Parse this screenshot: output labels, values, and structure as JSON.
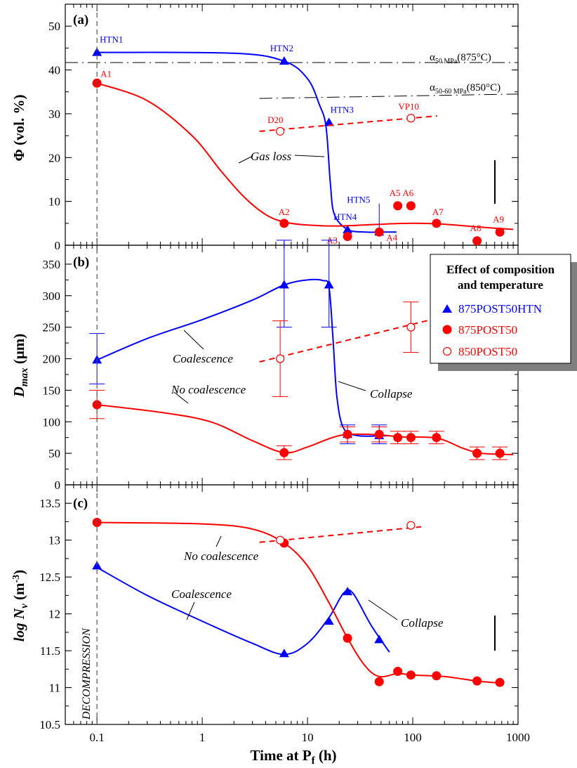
{
  "chart_data": {
    "type": "line",
    "x_axis": {
      "label": "Time at P",
      "label_sub": "f",
      "label_unit": " (h)",
      "scale": "log",
      "range": [
        0.05,
        1000
      ],
      "ticks": [
        0.1,
        1,
        10,
        100,
        1000
      ],
      "tick_labels": [
        "0.1",
        "1",
        "10",
        "100",
        "1000"
      ]
    },
    "decompression_line": {
      "x": 0.1,
      "label": "DECOMPRESSION"
    },
    "legend": {
      "title_line1": "Effect of composition",
      "title_line2": "and temperature",
      "items": [
        {
          "label": "875POST50HTN",
          "marker": "triangle",
          "color": "#0000ff"
        },
        {
          "label": "875POST50",
          "marker": "filled-circle",
          "color": "#ff0000"
        },
        {
          "label": "850POST50",
          "marker": "open-circle",
          "color": "#ff0000"
        }
      ]
    },
    "panels": [
      {
        "tag": "(a)",
        "ylabel": "Φ (vol. %)",
        "ylim": [
          0,
          55
        ],
        "yticks": [
          0,
          10,
          20,
          30,
          40,
          50
        ],
        "series": [
          {
            "name": "875POST50HTN",
            "color": "#0000ff",
            "marker": "triangle",
            "points": [
              {
                "x": 0.1,
                "y": 44,
                "label": "HTN1"
              },
              {
                "x": 6,
                "y": 42,
                "label": "HTN2"
              },
              {
                "x": 16,
                "y": 28,
                "label": "HTN3"
              },
              {
                "x": 24,
                "y": 3.5,
                "label": "HTN4"
              },
              {
                "x": 48,
                "y": 3,
                "label": "HTN5"
              }
            ],
            "curve": [
              [
                0.1,
                44
              ],
              [
                2,
                43.8
              ],
              [
                6,
                42
              ],
              [
                10,
                38
              ],
              [
                13,
                32
              ],
              [
                15,
                27
              ],
              [
                16.5,
                14
              ],
              [
                18,
                7
              ],
              [
                24,
                3.6
              ],
              [
                35,
                3
              ],
              [
                48,
                3
              ],
              [
                70,
                3
              ]
            ]
          },
          {
            "name": "875POST50",
            "color": "#ff0000",
            "marker": "filled-circle",
            "points": [
              {
                "x": 0.1,
                "y": 37,
                "label": "A1"
              },
              {
                "x": 6,
                "y": 5,
                "label": "A2"
              },
              {
                "x": 24,
                "y": 2,
                "label": "A3"
              },
              {
                "x": 48,
                "y": 3,
                "label": "A4"
              },
              {
                "x": 72,
                "y": 9,
                "label": "A5"
              },
              {
                "x": 96,
                "y": 9,
                "label": "A6"
              },
              {
                "x": 168,
                "y": 5,
                "label": "A7"
              },
              {
                "x": 408,
                "y": 1,
                "label": "A8"
              },
              {
                "x": 672,
                "y": 3,
                "label": "A9"
              }
            ],
            "curve": [
              [
                0.1,
                37
              ],
              [
                0.3,
                33
              ],
              [
                0.8,
                25
              ],
              [
                1.5,
                17
              ],
              [
                2.5,
                11
              ],
              [
                4,
                7
              ],
              [
                6,
                5.3
              ],
              [
                10,
                4.6
              ],
              [
                20,
                4.4
              ],
              [
                50,
                4.8
              ],
              [
                100,
                5
              ],
              [
                200,
                4.8
              ],
              [
                400,
                4.2
              ],
              [
                900,
                3.6
              ]
            ]
          },
          {
            "name": "850POST50",
            "color": "#ff0000",
            "marker": "open-circle",
            "dashed": true,
            "points": [
              {
                "x": 5.5,
                "y": 26,
                "label": "D20"
              },
              {
                "x": 96,
                "y": 29,
                "label": "VP10"
              }
            ],
            "curve": [
              [
                3.5,
                26
              ],
              [
                170,
                29.5
              ]
            ]
          }
        ],
        "reference_lines": [
          {
            "label": "α",
            "sub": "50 MPa",
            "tail": "(875°C)",
            "y": 41.7,
            "x_from": 0.05,
            "x_to": 1000
          },
          {
            "label": "α",
            "sub": "50-60 MPa",
            "tail": "(850°C)",
            "y": 34.5,
            "x_from": 3.5,
            "x_to": 1000,
            "y_start": 33.5
          }
        ],
        "annotations": [
          {
            "text": "Gas loss"
          }
        ]
      },
      {
        "tag": "(b)",
        "ylabel": "D",
        "ylabel_sub": "max",
        "ylabel_unit": " (μm)",
        "ylim": [
          0,
          380
        ],
        "yticks": [
          0,
          50,
          100,
          150,
          200,
          250,
          300,
          350
        ],
        "series": [
          {
            "name": "875POST50HTN",
            "color": "#0000ff",
            "marker": "triangle",
            "points": [
              {
                "x": 0.1,
                "y": 198,
                "err": [
                  160,
                  240
                ]
              },
              {
                "x": 6,
                "y": 317,
                "err": [
                  250,
                  388
                ]
              },
              {
                "x": 16,
                "y": 317,
                "err": [
                  250,
                  388
                ]
              },
              {
                "x": 24,
                "y": 80,
                "err": [
                  65,
                  95
                ]
              },
              {
                "x": 48,
                "y": 78,
                "err": [
                  65,
                  95
                ]
              }
            ],
            "curve": [
              [
                0.1,
                198
              ],
              [
                0.3,
                232
              ],
              [
                1,
                262
              ],
              [
                3,
                293
              ],
              [
                6,
                317
              ],
              [
                10,
                325
              ],
              [
                14,
                324
              ],
              [
                16,
                313
              ],
              [
                17.5,
                230
              ],
              [
                19,
                140
              ],
              [
                22,
                90
              ],
              [
                30,
                78
              ],
              [
                60,
                78
              ]
            ]
          },
          {
            "name": "875POST50",
            "color": "#ff0000",
            "marker": "filled-circle",
            "points": [
              {
                "x": 0.1,
                "y": 127,
                "err": [
                  105,
                  150
                ]
              },
              {
                "x": 6,
                "y": 51,
                "err": [
                  40,
                  62
                ]
              },
              {
                "x": 24,
                "y": 80,
                "err": [
                  68,
                  92
                ]
              },
              {
                "x": 48,
                "y": 80,
                "err": [
                  68,
                  92
                ]
              },
              {
                "x": 72,
                "y": 75,
                "err": [
                  65,
                  85
                ]
              },
              {
                "x": 96,
                "y": 75,
                "err": [
                  65,
                  85
                ]
              },
              {
                "x": 168,
                "y": 75,
                "err": [
                  65,
                  85
                ]
              },
              {
                "x": 408,
                "y": 50,
                "err": [
                  40,
                  60
                ]
              },
              {
                "x": 672,
                "y": 50,
                "err": [
                  40,
                  60
                ]
              }
            ],
            "curve": [
              [
                0.1,
                127
              ],
              [
                0.4,
                115
              ],
              [
                1.2,
                100
              ],
              [
                3,
                70
              ],
              [
                6,
                51
              ],
              [
                10,
                60
              ],
              [
                20,
                78
              ],
              [
                40,
                80
              ],
              [
                80,
                76
              ],
              [
                170,
                74
              ],
              [
                300,
                58
              ],
              [
                450,
                50
              ],
              [
                900,
                48
              ]
            ]
          },
          {
            "name": "850POST50",
            "color": "#ff0000",
            "marker": "open-circle",
            "dashed": true,
            "points": [
              {
                "x": 5.5,
                "y": 200,
                "err": [
                  140,
                  260
                ]
              },
              {
                "x": 96,
                "y": 250,
                "err": [
                  210,
                  290
                ]
              }
            ],
            "curve": [
              [
                3.5,
                195
              ],
              [
                150,
                262
              ]
            ]
          }
        ],
        "annotations": [
          {
            "text": "Coalescence"
          },
          {
            "text": "No coalescence"
          },
          {
            "text": "Collapse"
          }
        ]
      },
      {
        "tag": "(c)",
        "ylabel": "log N",
        "ylabel_sub": "v",
        "ylabel_unit": " (m",
        "ylabel_sup": "-3",
        "ylabel_end": ")",
        "ylim": [
          10.5,
          13.75
        ],
        "yticks": [
          10.5,
          11,
          11.5,
          12,
          12.5,
          13,
          13.5
        ],
        "tick_labels": [
          "10.5",
          "11",
          "11.5",
          "12",
          "12.5",
          "13",
          "13.5"
        ],
        "series": [
          {
            "name": "875POST50HTN",
            "color": "#0000ff",
            "marker": "triangle",
            "points": [
              {
                "x": 0.1,
                "y": 12.65
              },
              {
                "x": 6,
                "y": 11.46
              },
              {
                "x": 16,
                "y": 11.9
              },
              {
                "x": 24,
                "y": 12.3
              },
              {
                "x": 48,
                "y": 11.65
              }
            ],
            "curve": [
              [
                0.1,
                12.63
              ],
              [
                0.3,
                12.25
              ],
              [
                1,
                11.9
              ],
              [
                3,
                11.6
              ],
              [
                6,
                11.45
              ],
              [
                10,
                11.6
              ],
              [
                16,
                11.95
              ],
              [
                22,
                12.28
              ],
              [
                27,
                12.28
              ],
              [
                40,
                11.85
              ],
              [
                60,
                11.48
              ]
            ]
          },
          {
            "name": "875POST50",
            "color": "#ff0000",
            "marker": "filled-circle",
            "points": [
              {
                "x": 0.1,
                "y": 13.24
              },
              {
                "x": 6,
                "y": 12.96
              },
              {
                "x": 24,
                "y": 11.67
              },
              {
                "x": 48,
                "y": 11.08
              },
              {
                "x": 72,
                "y": 11.22
              },
              {
                "x": 96,
                "y": 11.17
              },
              {
                "x": 168,
                "y": 11.16
              },
              {
                "x": 408,
                "y": 11.09
              },
              {
                "x": 672,
                "y": 11.07
              }
            ],
            "curve": [
              [
                0.1,
                13.24
              ],
              [
                1,
                13.22
              ],
              [
                3,
                13.15
              ],
              [
                6,
                12.96
              ],
              [
                10,
                12.65
              ],
              [
                16,
                12.15
              ],
              [
                24,
                11.67
              ],
              [
                35,
                11.3
              ],
              [
                48,
                11.15
              ],
              [
                72,
                11.19
              ],
              [
                100,
                11.17
              ],
              [
                200,
                11.15
              ],
              [
                400,
                11.09
              ],
              [
                700,
                11.06
              ]
            ]
          },
          {
            "name": "850POST50",
            "color": "#ff0000",
            "marker": "open-circle",
            "dashed": true,
            "points": [
              {
                "x": 5.5,
                "y": 13.0
              },
              {
                "x": 96,
                "y": 13.2
              }
            ],
            "curve": [
              [
                3.5,
                12.97
              ],
              [
                120,
                13.18
              ]
            ]
          }
        ],
        "annotations": [
          {
            "text": "No coalescence"
          },
          {
            "text": "Coalescence"
          },
          {
            "text": "Collapse"
          }
        ]
      }
    ]
  }
}
